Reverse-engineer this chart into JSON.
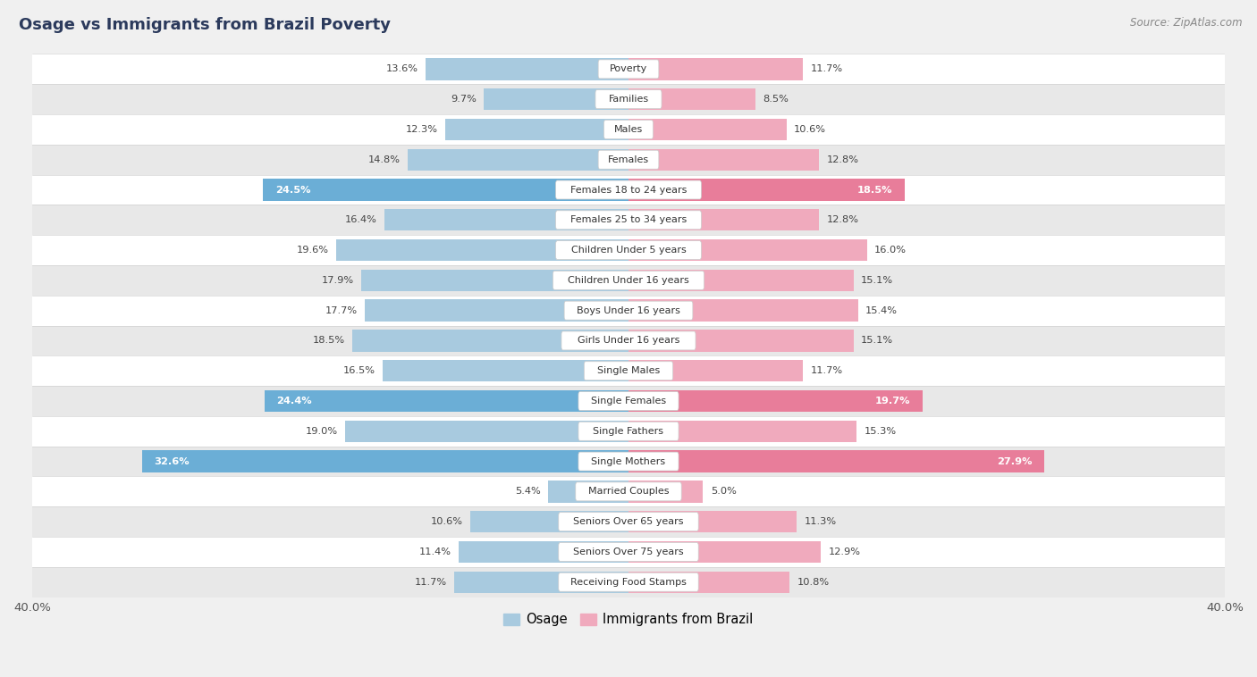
{
  "title": "Osage vs Immigrants from Brazil Poverty",
  "source": "Source: ZipAtlas.com",
  "categories": [
    "Poverty",
    "Families",
    "Males",
    "Females",
    "Females 18 to 24 years",
    "Females 25 to 34 years",
    "Children Under 5 years",
    "Children Under 16 years",
    "Boys Under 16 years",
    "Girls Under 16 years",
    "Single Males",
    "Single Females",
    "Single Fathers",
    "Single Mothers",
    "Married Couples",
    "Seniors Over 65 years",
    "Seniors Over 75 years",
    "Receiving Food Stamps"
  ],
  "osage_values": [
    13.6,
    9.7,
    12.3,
    14.8,
    24.5,
    16.4,
    19.6,
    17.9,
    17.7,
    18.5,
    16.5,
    24.4,
    19.0,
    32.6,
    5.4,
    10.6,
    11.4,
    11.7
  ],
  "brazil_values": [
    11.7,
    8.5,
    10.6,
    12.8,
    18.5,
    12.8,
    16.0,
    15.1,
    15.4,
    15.1,
    11.7,
    19.7,
    15.3,
    27.9,
    5.0,
    11.3,
    12.9,
    10.8
  ],
  "osage_color": "#A8CADF",
  "brazil_color": "#F0AABD",
  "osage_highlight_color": "#6BAED6",
  "brazil_highlight_color": "#E87D9A",
  "highlight_rows": [
    4,
    11,
    13
  ],
  "xlim": 40.0,
  "bar_height": 0.72,
  "background_color": "#F0F0F0",
  "row_bg_light": "#FFFFFF",
  "row_bg_dark": "#E8E8E8",
  "legend_osage": "Osage",
  "legend_brazil": "Immigrants from Brazil",
  "label_color_normal": "#444444",
  "label_color_highlight": "#FFFFFF",
  "title_color": "#2B3A5C",
  "source_color": "#888888"
}
